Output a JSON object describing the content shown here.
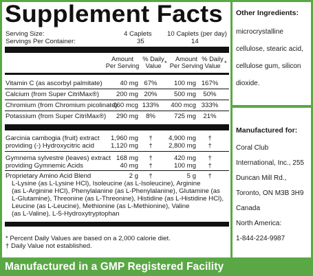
{
  "title": "Supplement Facts",
  "serving": {
    "size_label": "Serving Size:",
    "size_val1": "4 Caplets",
    "size_val2": "10 Caplets (per day)",
    "per_container_label": "Servings Per Container:",
    "per_container_val1": "35",
    "per_container_val2": "14"
  },
  "headers": {
    "amount": "Amount",
    "per_serving": "Per Serving",
    "pct": "% Daily",
    "value": "Value",
    "star": "*"
  },
  "nutrients": [
    {
      "name": "Vitamin C (as ascorbyl palmitate)",
      "a1": "40 mg",
      "d1": "67%",
      "a2": "100 mg",
      "d2": "167%"
    },
    {
      "name": "Calcium (from Super CitriMax®)",
      "a1": "200 mg",
      "d1": "20%",
      "a2": "500 mg",
      "d2": "50%"
    },
    {
      "name": "Chromium (from Chromium picolinate)",
      "a1": "160 mcg",
      "d1": "133%",
      "a2": "400 mcg",
      "d2": "333%"
    },
    {
      "name": "Potassium (from Super CitriMax®)",
      "a1": "290 mg",
      "d1": "8%",
      "a2": "725 mg",
      "d2": "21%"
    }
  ],
  "extracts": [
    {
      "name": "Garcinia cambogia (fruit) extract",
      "a1": "1,960 mg",
      "d1": "†",
      "a2": "4,900 mg",
      "d2": "†"
    },
    {
      "name": "providing (-) Hydroxycitric acid",
      "a1": "1,120 mg",
      "d1": "†",
      "a2": "2,800 mg",
      "d2": "†"
    },
    {
      "name": "Gymnema sylvestre (leaves) extract",
      "a1": "168 mg",
      "d1": "†",
      "a2": "420 mg",
      "d2": "†"
    },
    {
      "name": "providing Gymnemic Acids",
      "a1": "40 mg",
      "d1": "†",
      "a2": "100 mg",
      "d2": "†"
    }
  ],
  "blend": {
    "name": "Proprietary Amino Acid Blend",
    "a1": "2 g",
    "d1": "†",
    "a2": "5 g",
    "d2": "†",
    "lines": [
      "L-Lysine (as L-Lysine HCl), Isoleucine (as L-Isoleucine), Arginine",
      "(as L-Arginine HCl), Phenylalanine (as L-Phenylalanine), Glutamine (as",
      "L-Glutamine), Threonine (as L-Threonine), Histidine (as L-Histidine HCl),",
      "Leucine (as L-Leucine), Methionine (as L-Methionine), Valine",
      "(as L-Valine), L-5-Hydroxytryptophan"
    ]
  },
  "footnotes": [
    "* Percent Daily Values are based on a 2,000 calorie diet.",
    "† Daily Value not established."
  ],
  "other_ingredients": {
    "heading": "Other Ingredients:",
    "lines": [
      "microcrystalline",
      "cellulose, stearic acid,",
      "cellulose gum, silicon",
      "dioxide."
    ]
  },
  "manufacturer": {
    "heading": "Manufactured for:",
    "lines": [
      "Coral Club",
      "International, Inc., 255",
      "Duncan Mill Rd.,",
      "Toronto, ON  M3B 3H9",
      "Canada",
      "North America:",
      "1-844-224-9987"
    ]
  },
  "footer": "Manufactured in a GMP Registered Facility",
  "colors": {
    "accent": "#5aa845",
    "text": "#1a1a1a"
  }
}
